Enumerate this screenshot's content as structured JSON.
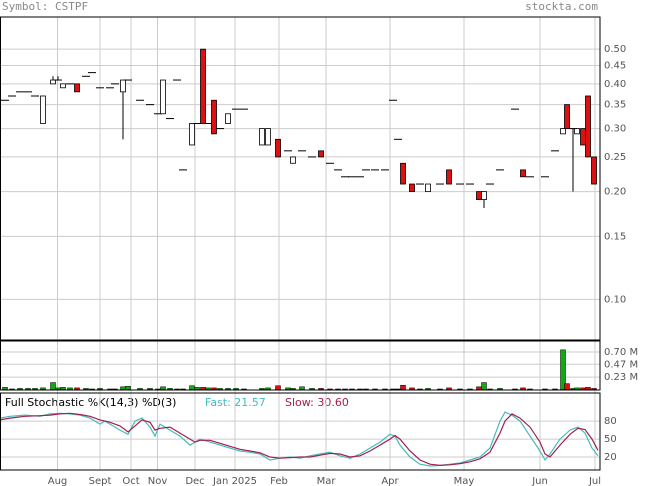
{
  "chart_data": {
    "type": "candlestick",
    "symbol_label": "Symbol: CSTPF",
    "site": "stockta.com",
    "xlim": [
      0,
      240
    ],
    "xticks": [
      {
        "value": 23,
        "label": "Aug"
      },
      {
        "value": 40,
        "label": "Sept"
      },
      {
        "value": 52.4,
        "label": "Oct"
      },
      {
        "value": 63,
        "label": "Nov"
      },
      {
        "value": 78,
        "label": "Dec"
      },
      {
        "value": 94,
        "label": "Jan 2025"
      },
      {
        "value": 111.6,
        "label": "Feb"
      },
      {
        "value": 130.4,
        "label": "Mar"
      },
      {
        "value": 156,
        "label": "Apr"
      },
      {
        "value": 185.6,
        "label": "May"
      },
      {
        "value": 216,
        "label": "Jun"
      },
      {
        "value": 238,
        "label": "Jul"
      }
    ],
    "grid": true,
    "up_color": "#ffffff",
    "down_color": "#dd1111",
    "price": {
      "ylim": [
        0.077,
        0.615
      ],
      "log": true,
      "yticks": [
        {
          "value": 0.5,
          "label": "0.50"
        },
        0.45,
        {
          "value": 0.4,
          "label": "0.40"
        },
        0.35,
        {
          "value": 0.3,
          "label": "0.30"
        },
        0.25,
        {
          "value": 0.2,
          "label": "0.20"
        },
        0.15,
        {
          "value": 0.1,
          "label": "0.10"
        }
      ]
    },
    "candles": {
      "x": [
        2,
        4.8,
        8,
        11.2,
        14,
        17.2,
        21.2,
        23.2,
        25.2,
        28,
        30.8,
        34.4,
        36.8,
        40,
        44,
        46,
        49.2,
        51.2,
        56,
        60,
        63.2,
        65.2,
        68,
        70.8,
        73.2,
        76.8,
        78.8,
        81.2,
        83.2,
        85.6,
        88,
        91.2,
        94.4,
        97.6,
        104.8,
        107.2,
        111.2,
        115.2,
        117.2,
        120.8,
        124.8,
        128.4,
        132,
        135.2,
        138,
        140.8,
        144,
        146.4,
        150,
        154,
        157.2,
        159.2,
        161.2,
        164.8,
        168,
        171.2,
        176,
        179.6,
        184,
        188,
        191.6,
        193.6,
        196,
        200,
        206,
        209.2,
        212,
        218,
        222,
        225.2,
        226.8,
        229.2,
        230.8,
        233.2,
        235.2,
        237.6
      ],
      "open": [
        0.36,
        0.37,
        0.38,
        0.38,
        0.37,
        0.31,
        0.4,
        0.41,
        0.39,
        0.4,
        0.4,
        0.42,
        0.43,
        0.39,
        0.39,
        0.4,
        0.38,
        0.41,
        0.36,
        0.35,
        0.33,
        0.33,
        0.32,
        0.41,
        0.23,
        0.27,
        0.31,
        0.5,
        0.31,
        0.36,
        0.3,
        0.31,
        0.34,
        0.34,
        0.27,
        0.27,
        0.28,
        0.26,
        0.24,
        0.26,
        0.25,
        0.26,
        0.24,
        0.23,
        0.22,
        0.22,
        0.22,
        0.23,
        0.23,
        0.23,
        0.36,
        0.28,
        0.24,
        0.21,
        0.21,
        0.2,
        0.21,
        0.23,
        0.21,
        0.21,
        0.2,
        0.19,
        0.21,
        0.23,
        0.34,
        0.23,
        0.22,
        0.22,
        0.26,
        0.29,
        0.35,
        0.3,
        0.29,
        0.3,
        0.37,
        0.25
      ],
      "high": [
        0.36,
        0.37,
        0.38,
        0.38,
        0.37,
        0.37,
        0.42,
        0.42,
        0.4,
        0.4,
        0.4,
        0.42,
        0.43,
        0.39,
        0.39,
        0.4,
        0.41,
        0.41,
        0.36,
        0.35,
        0.33,
        0.41,
        0.32,
        0.41,
        0.23,
        0.31,
        0.31,
        0.5,
        0.31,
        0.36,
        0.3,
        0.33,
        0.34,
        0.34,
        0.3,
        0.3,
        0.28,
        0.26,
        0.25,
        0.26,
        0.25,
        0.26,
        0.24,
        0.23,
        0.22,
        0.22,
        0.22,
        0.23,
        0.23,
        0.23,
        0.36,
        0.28,
        0.24,
        0.21,
        0.21,
        0.21,
        0.21,
        0.23,
        0.21,
        0.21,
        0.2,
        0.2,
        0.21,
        0.23,
        0.34,
        0.23,
        0.22,
        0.22,
        0.26,
        0.3,
        0.35,
        0.3,
        0.3,
        0.3,
        0.37,
        0.25
      ],
      "low": [
        0.36,
        0.37,
        0.38,
        0.38,
        0.37,
        0.31,
        0.4,
        0.41,
        0.39,
        0.4,
        0.38,
        0.42,
        0.43,
        0.39,
        0.39,
        0.4,
        0.28,
        0.41,
        0.36,
        0.35,
        0.33,
        0.33,
        0.32,
        0.41,
        0.23,
        0.27,
        0.31,
        0.31,
        0.31,
        0.29,
        0.3,
        0.31,
        0.34,
        0.34,
        0.27,
        0.27,
        0.25,
        0.26,
        0.24,
        0.26,
        0.25,
        0.25,
        0.24,
        0.23,
        0.22,
        0.22,
        0.22,
        0.23,
        0.23,
        0.23,
        0.36,
        0.28,
        0.21,
        0.2,
        0.21,
        0.2,
        0.21,
        0.21,
        0.21,
        0.21,
        0.19,
        0.18,
        0.21,
        0.23,
        0.34,
        0.22,
        0.22,
        0.22,
        0.26,
        0.29,
        0.3,
        0.2,
        0.29,
        0.27,
        0.25,
        0.21
      ],
      "close": [
        0.36,
        0.37,
        0.38,
        0.38,
        0.37,
        0.37,
        0.41,
        0.41,
        0.4,
        0.4,
        0.38,
        0.42,
        0.43,
        0.39,
        0.39,
        0.4,
        0.41,
        0.41,
        0.36,
        0.35,
        0.33,
        0.41,
        0.32,
        0.41,
        0.23,
        0.31,
        0.31,
        0.31,
        0.31,
        0.29,
        0.3,
        0.33,
        0.34,
        0.34,
        0.3,
        0.3,
        0.25,
        0.26,
        0.25,
        0.26,
        0.25,
        0.25,
        0.24,
        0.23,
        0.22,
        0.22,
        0.22,
        0.23,
        0.23,
        0.23,
        0.36,
        0.28,
        0.21,
        0.2,
        0.21,
        0.21,
        0.21,
        0.21,
        0.21,
        0.21,
        0.19,
        0.2,
        0.21,
        0.23,
        0.34,
        0.22,
        0.22,
        0.22,
        0.26,
        0.3,
        0.3,
        0.3,
        0.3,
        0.27,
        0.25,
        0.21
      ]
    },
    "volume": {
      "ylim": [
        0,
        0.905
      ],
      "yticks": [
        {
          "value": 0.7,
          "label": "0.70 M"
        },
        {
          "value": 0.47,
          "label": "0.47 M"
        },
        {
          "value": 0.23,
          "label": "0.23 M"
        }
      ],
      "up_color": "#11aa11",
      "down_color": "#dd1111",
      "values": [
        0.04,
        0.01,
        0.02,
        0.02,
        0.02,
        0.03,
        0.13,
        0.03,
        0.04,
        0.03,
        0.03,
        0.02,
        0.01,
        0.02,
        0.01,
        0.01,
        0.05,
        0.06,
        0.02,
        0.02,
        0.01,
        0.05,
        0.02,
        0.01,
        0.01,
        0.07,
        0.04,
        0.04,
        0.03,
        0.03,
        0.02,
        0.02,
        0.02,
        0.01,
        0.02,
        0.03,
        0.07,
        0.03,
        0.02,
        0.05,
        0.02,
        0.02,
        0.01,
        0.01,
        0.01,
        0.01,
        0.01,
        0.01,
        0.01,
        0.01,
        0.01,
        0.01,
        0.08,
        0.03,
        0.01,
        0.02,
        0.01,
        0.03,
        0.01,
        0.01,
        0.05,
        0.13,
        0.01,
        0.02,
        0.01,
        0.03,
        0.01,
        0.01,
        0.01,
        0.74,
        0.11,
        0.02,
        0.03,
        0.03,
        0.04,
        0.02
      ]
    },
    "stochastic": {
      "title": "Full Stochastic %K(14,3) %D(3)",
      "ylim": [
        0,
        127
      ],
      "yticks": [
        80,
        50,
        20
      ],
      "x": [
        0,
        4,
        10,
        16,
        20,
        24,
        28,
        32,
        36,
        40,
        42,
        44,
        48,
        51.2,
        54,
        56.8,
        60,
        62,
        64,
        68,
        72,
        76,
        78,
        80,
        84,
        88,
        92,
        96,
        100,
        104,
        108,
        112,
        116,
        120,
        124,
        128,
        132,
        136,
        140,
        144,
        148,
        152,
        156,
        158,
        160,
        164,
        168,
        172,
        176,
        180,
        184,
        188,
        192,
        196,
        200,
        202,
        204.8,
        208,
        212,
        216,
        218,
        220,
        224,
        228,
        231.2,
        234,
        236.8,
        239.2
      ],
      "series": [
        {
          "name": "Fast: 21.57",
          "color": "#44bbbb",
          "values": [
            85,
            88,
            90,
            88,
            92,
            93,
            92,
            90,
            85,
            75,
            80,
            75,
            65,
            58,
            80,
            85,
            70,
            55,
            75,
            65,
            55,
            40,
            45,
            50,
            45,
            40,
            35,
            30,
            28,
            25,
            15,
            18,
            20,
            18,
            22,
            25,
            28,
            22,
            18,
            25,
            35,
            45,
            58,
            55,
            40,
            20,
            8,
            5,
            6,
            8,
            10,
            15,
            20,
            35,
            80,
            95,
            90,
            80,
            55,
            30,
            15,
            25,
            50,
            65,
            70,
            60,
            35,
            22
          ]
        },
        {
          "name": "Slow: 30.60",
          "color": "#a02050",
          "values": [
            82,
            85,
            88,
            89,
            90,
            92,
            93,
            91,
            88,
            82,
            80,
            78,
            72,
            62,
            72,
            82,
            78,
            65,
            68,
            70,
            60,
            50,
            45,
            48,
            48,
            43,
            38,
            33,
            30,
            27,
            20,
            18,
            19,
            20,
            20,
            23,
            26,
            25,
            20,
            22,
            30,
            40,
            50,
            56,
            50,
            30,
            15,
            8,
            6,
            7,
            9,
            12,
            17,
            28,
            60,
            80,
            92,
            85,
            70,
            45,
            25,
            20,
            40,
            58,
            68,
            66,
            50,
            31
          ]
        }
      ]
    }
  }
}
